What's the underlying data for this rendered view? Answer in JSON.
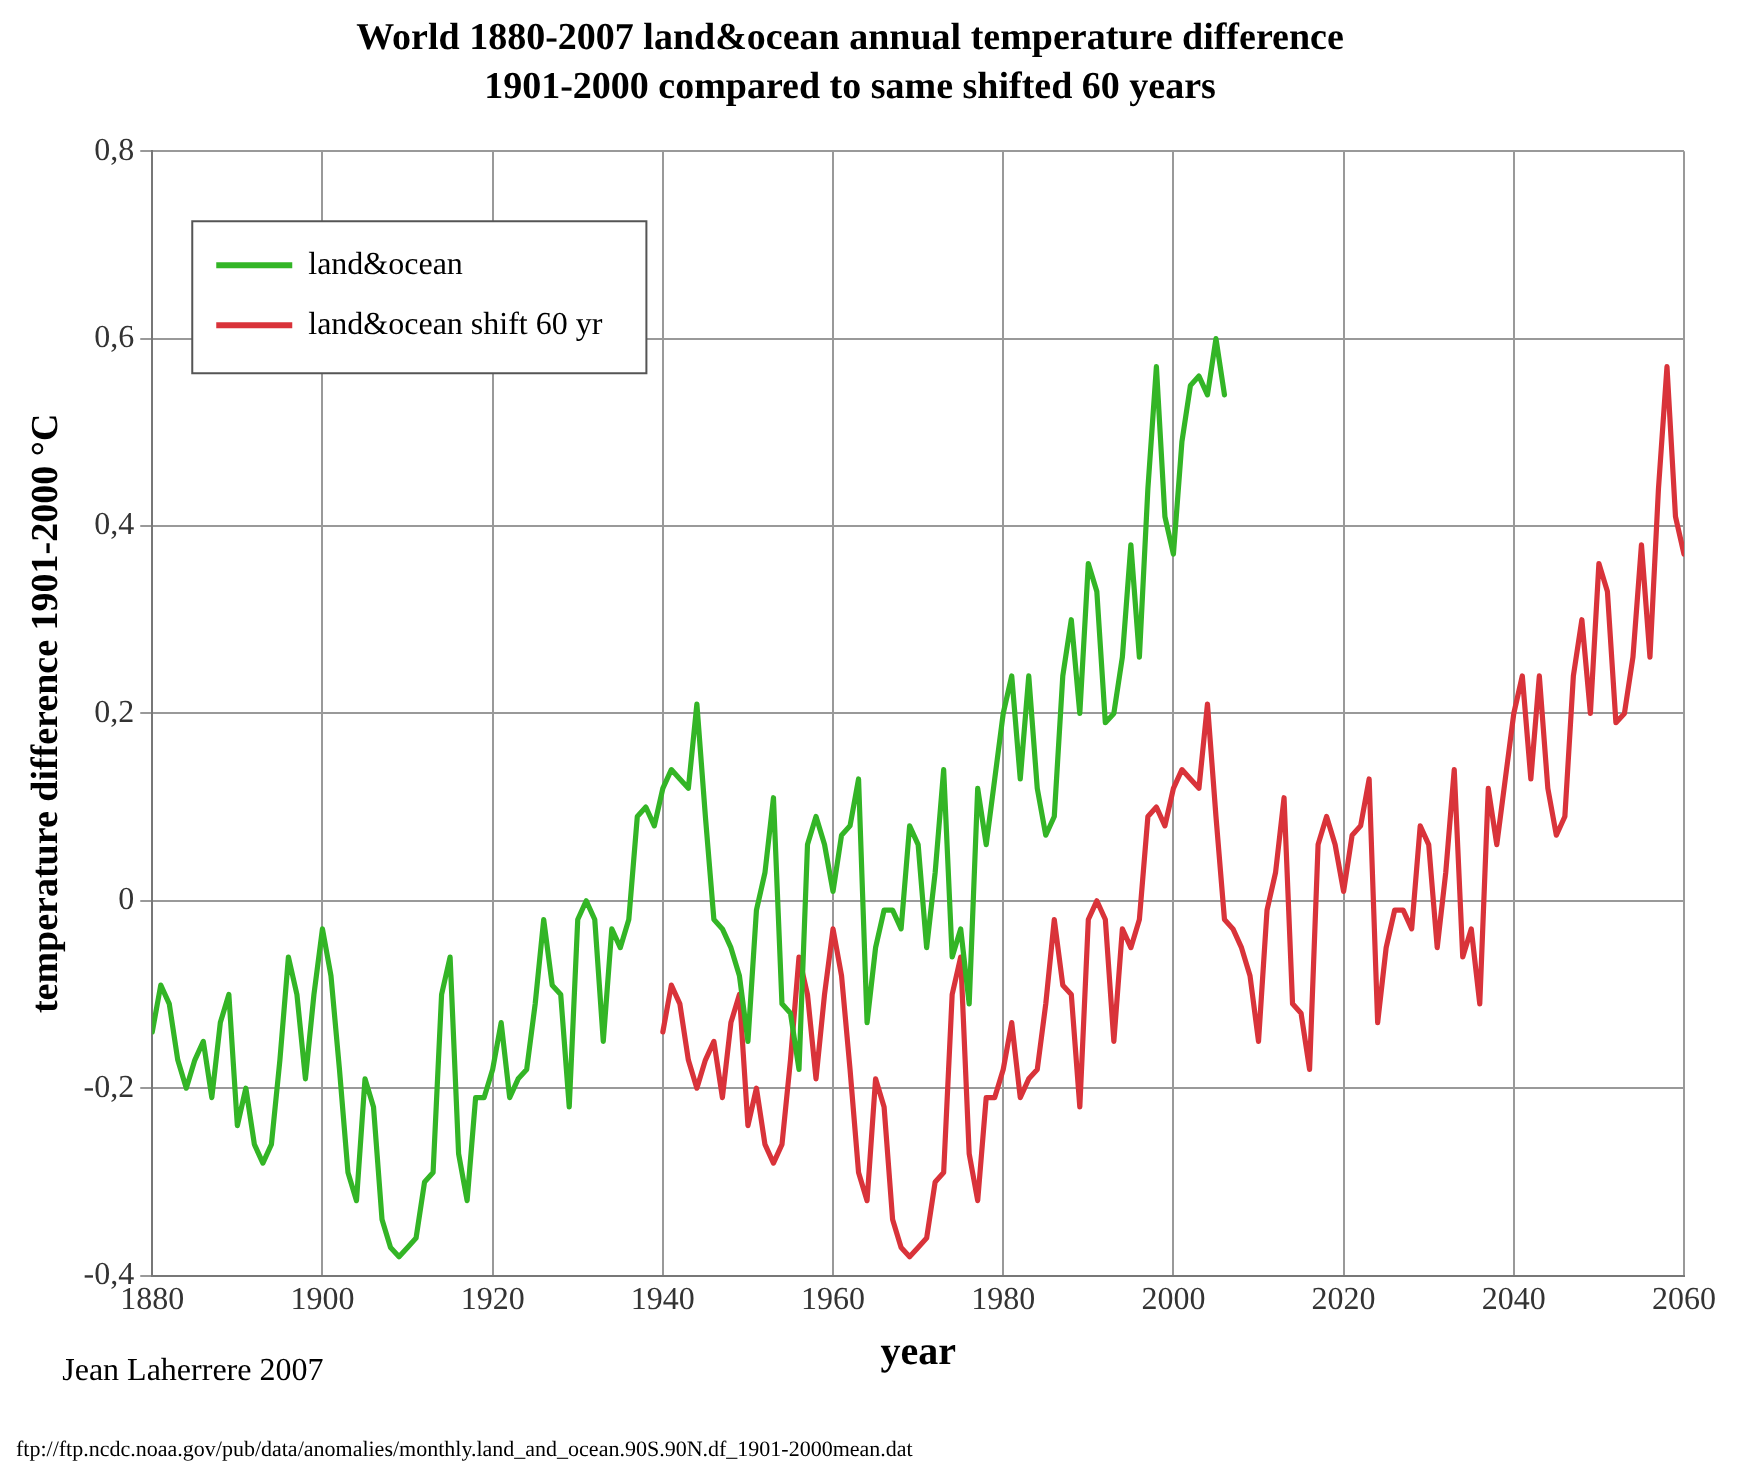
{
  "chart_data": {
    "type": "line",
    "title": "World 1880-2007 land&ocean annual temperature difference",
    "subtitle": "1901-2000 compared to same shifted 60 years",
    "xlabel": "year",
    "ylabel": "temperature difference 1901-2000 °C",
    "xlim": [
      1880,
      2060
    ],
    "xticks": [
      1880,
      1900,
      1920,
      1940,
      1960,
      1980,
      2000,
      2020,
      2040,
      2060
    ],
    "ylim": [
      -0.4,
      0.8
    ],
    "yticks": [
      {
        "value": -0.4,
        "label": "-0,4"
      },
      {
        "value": -0.2,
        "label": "-0,2"
      },
      0,
      {
        "value": 0.2,
        "label": "0,2"
      },
      {
        "value": 0.4,
        "label": "0,4"
      },
      {
        "value": 0.6,
        "label": "0,6"
      },
      {
        "value": 0.8,
        "label": "0,8"
      }
    ],
    "grid": true,
    "legend": "top left",
    "marker": "none",
    "line_style": "solid",
    "annotations": [
      "Jean Laherrere 2007",
      "ftp://ftp.ncdc.noaa.gov/pub/data/anomalies/monthly.land_and_ocean.90S.90N.df_1901-2000mean.dat"
    ],
    "series": [
      {
        "name": "land&ocean",
        "color": "#33b526",
        "x": [
          1880,
          1881,
          1882,
          1883,
          1884,
          1885,
          1886,
          1887,
          1888,
          1889,
          1890,
          1891,
          1892,
          1893,
          1894,
          1895,
          1896,
          1897,
          1898,
          1899,
          1900,
          1901,
          1902,
          1903,
          1904,
          1905,
          1906,
          1907,
          1908,
          1909,
          1910,
          1911,
          1912,
          1913,
          1914,
          1915,
          1916,
          1917,
          1918,
          1919,
          1920,
          1921,
          1922,
          1923,
          1924,
          1925,
          1926,
          1927,
          1928,
          1929,
          1930,
          1931,
          1932,
          1933,
          1934,
          1935,
          1936,
          1937,
          1938,
          1939,
          1940,
          1941,
          1942,
          1943,
          1944,
          1945,
          1946,
          1947,
          1948,
          1949,
          1950,
          1951,
          1952,
          1953,
          1954,
          1955,
          1956,
          1957,
          1958,
          1959,
          1960,
          1961,
          1962,
          1963,
          1964,
          1965,
          1966,
          1967,
          1968,
          1969,
          1970,
          1971,
          1972,
          1973,
          1974,
          1975,
          1976,
          1977,
          1978,
          1979,
          1980,
          1981,
          1982,
          1983,
          1984,
          1985,
          1986,
          1987,
          1988,
          1989,
          1990,
          1991,
          1992,
          1993,
          1994,
          1995,
          1996,
          1997,
          1998,
          1999,
          2000,
          2001,
          2002,
          2003,
          2004,
          2005,
          2006
        ],
        "values": [
          -0.14,
          -0.09,
          -0.11,
          -0.17,
          -0.2,
          -0.17,
          -0.15,
          -0.21,
          -0.13,
          -0.1,
          -0.24,
          -0.2,
          -0.26,
          -0.28,
          -0.26,
          -0.17,
          -0.06,
          -0.1,
          -0.19,
          -0.1,
          -0.03,
          -0.08,
          -0.18,
          -0.29,
          -0.32,
          -0.19,
          -0.22,
          -0.34,
          -0.37,
          -0.38,
          -0.37,
          -0.36,
          -0.3,
          -0.29,
          -0.1,
          -0.06,
          -0.27,
          -0.32,
          -0.21,
          -0.21,
          -0.18,
          -0.13,
          -0.21,
          -0.19,
          -0.18,
          -0.11,
          -0.02,
          -0.09,
          -0.1,
          -0.22,
          -0.02,
          0,
          -0.02,
          -0.15,
          -0.03,
          -0.05,
          -0.02,
          0.09,
          0.1,
          0.08,
          0.12,
          0.14,
          0.13,
          0.12,
          0.21,
          0.09,
          -0.02,
          -0.03,
          -0.05,
          -0.08,
          -0.15,
          -0.01,
          0.03,
          0.11,
          -0.11,
          -0.12,
          -0.18,
          0.06,
          0.09,
          0.06,
          0.01,
          0.07,
          0.08,
          0.13,
          -0.13,
          -0.05,
          -0.01,
          -0.01,
          -0.03,
          0.08,
          0.06,
          -0.05,
          0.03,
          0.14,
          -0.06,
          -0.03,
          -0.11,
          0.12,
          0.06,
          0.13,
          0.2,
          0.24,
          0.13,
          0.24,
          0.12,
          0.07,
          0.09,
          0.24,
          0.3,
          0.2,
          0.36,
          0.33,
          0.19,
          0.2,
          0.26,
          0.38,
          0.26,
          0.44,
          0.57,
          0.41,
          0.37,
          0.49,
          0.55,
          0.56,
          0.54,
          0.6,
          0.54
        ]
      },
      {
        "name": "land&ocean shift 60 yr",
        "color": "#d9333a",
        "x": [
          1940,
          1941,
          1942,
          1943,
          1944,
          1945,
          1946,
          1947,
          1948,
          1949,
          1950,
          1951,
          1952,
          1953,
          1954,
          1955,
          1956,
          1957,
          1958,
          1959,
          1960,
          1961,
          1962,
          1963,
          1964,
          1965,
          1966,
          1967,
          1968,
          1969,
          1970,
          1971,
          1972,
          1973,
          1974,
          1975,
          1976,
          1977,
          1978,
          1979,
          1980,
          1981,
          1982,
          1983,
          1984,
          1985,
          1986,
          1987,
          1988,
          1989,
          1990,
          1991,
          1992,
          1993,
          1994,
          1995,
          1996,
          1997,
          1998,
          1999,
          2000,
          2001,
          2002,
          2003,
          2004,
          2005,
          2006,
          2007,
          2008,
          2009,
          2010,
          2011,
          2012,
          2013,
          2014,
          2015,
          2016,
          2017,
          2018,
          2019,
          2020,
          2021,
          2022,
          2023,
          2024,
          2025,
          2026,
          2027,
          2028,
          2029,
          2030,
          2031,
          2032,
          2033,
          2034,
          2035,
          2036,
          2037,
          2038,
          2039,
          2040,
          2041,
          2042,
          2043,
          2044,
          2045,
          2046,
          2047,
          2048,
          2049,
          2050,
          2051,
          2052,
          2053,
          2054,
          2055,
          2056,
          2057,
          2058,
          2059,
          2060
        ],
        "values": [
          -0.14,
          -0.09,
          -0.11,
          -0.17,
          -0.2,
          -0.17,
          -0.15,
          -0.21,
          -0.13,
          -0.1,
          -0.24,
          -0.2,
          -0.26,
          -0.28,
          -0.26,
          -0.17,
          -0.06,
          -0.1,
          -0.19,
          -0.1,
          -0.03,
          -0.08,
          -0.18,
          -0.29,
          -0.32,
          -0.19,
          -0.22,
          -0.34,
          -0.37,
          -0.38,
          -0.37,
          -0.36,
          -0.3,
          -0.29,
          -0.1,
          -0.06,
          -0.27,
          -0.32,
          -0.21,
          -0.21,
          -0.18,
          -0.13,
          -0.21,
          -0.19,
          -0.18,
          -0.11,
          -0.02,
          -0.09,
          -0.1,
          -0.22,
          -0.02,
          0,
          -0.02,
          -0.15,
          -0.03,
          -0.05,
          -0.02,
          0.09,
          0.1,
          0.08,
          0.12,
          0.14,
          0.13,
          0.12,
          0.21,
          0.09,
          -0.02,
          -0.03,
          -0.05,
          -0.08,
          -0.15,
          -0.01,
          0.03,
          0.11,
          -0.11,
          -0.12,
          -0.18,
          0.06,
          0.09,
          0.06,
          0.01,
          0.07,
          0.08,
          0.13,
          -0.13,
          -0.05,
          -0.01,
          -0.01,
          -0.03,
          0.08,
          0.06,
          -0.05,
          0.03,
          0.14,
          -0.06,
          -0.03,
          -0.11,
          0.12,
          0.06,
          0.13,
          0.2,
          0.24,
          0.13,
          0.24,
          0.12,
          0.07,
          0.09,
          0.24,
          0.3,
          0.2,
          0.36,
          0.33,
          0.19,
          0.2,
          0.26,
          0.38,
          0.26,
          0.44,
          0.57,
          0.41,
          0.37
        ]
      }
    ]
  }
}
